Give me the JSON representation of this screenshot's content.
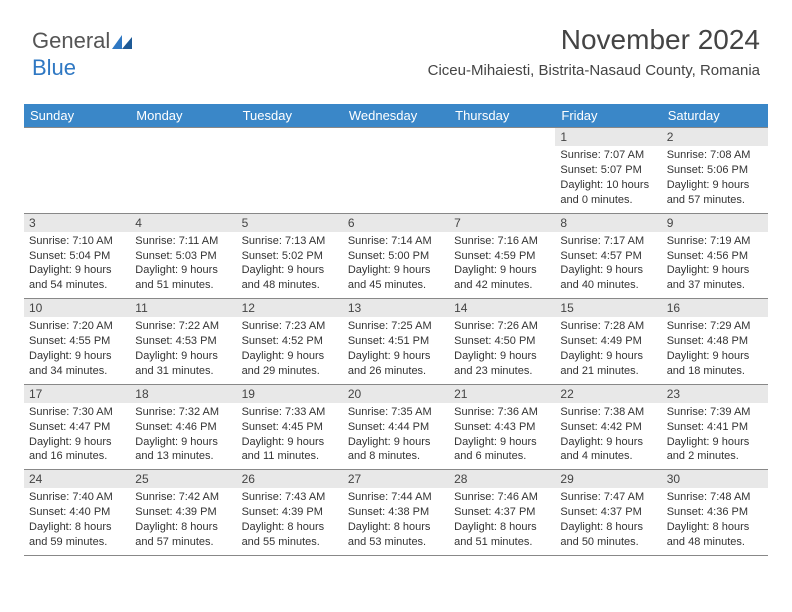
{
  "logo": {
    "text_gray": "General",
    "text_blue": "Blue"
  },
  "title": "November 2024",
  "location": "Ciceu-Mihaiesti, Bistrita-Nasaud County, Romania",
  "colors": {
    "header_bg": "#3a87c8",
    "header_text": "#ffffff",
    "daynum_bg": "#e8e8e8",
    "border": "#888888",
    "logo_gray": "#555555",
    "logo_blue": "#2f78c3",
    "body_text": "#333333",
    "bg": "#ffffff"
  },
  "typography": {
    "title_fontsize": 28,
    "location_fontsize": 15,
    "dayheader_fontsize": 13,
    "daynum_fontsize": 12,
    "cell_fontsize": 11
  },
  "day_headers": [
    "Sunday",
    "Monday",
    "Tuesday",
    "Wednesday",
    "Thursday",
    "Friday",
    "Saturday"
  ],
  "weeks": [
    [
      null,
      null,
      null,
      null,
      null,
      {
        "n": "1",
        "sunrise": "Sunrise: 7:07 AM",
        "sunset": "Sunset: 5:07 PM",
        "d1": "Daylight: 10 hours",
        "d2": "and 0 minutes."
      },
      {
        "n": "2",
        "sunrise": "Sunrise: 7:08 AM",
        "sunset": "Sunset: 5:06 PM",
        "d1": "Daylight: 9 hours",
        "d2": "and 57 minutes."
      }
    ],
    [
      {
        "n": "3",
        "sunrise": "Sunrise: 7:10 AM",
        "sunset": "Sunset: 5:04 PM",
        "d1": "Daylight: 9 hours",
        "d2": "and 54 minutes."
      },
      {
        "n": "4",
        "sunrise": "Sunrise: 7:11 AM",
        "sunset": "Sunset: 5:03 PM",
        "d1": "Daylight: 9 hours",
        "d2": "and 51 minutes."
      },
      {
        "n": "5",
        "sunrise": "Sunrise: 7:13 AM",
        "sunset": "Sunset: 5:02 PM",
        "d1": "Daylight: 9 hours",
        "d2": "and 48 minutes."
      },
      {
        "n": "6",
        "sunrise": "Sunrise: 7:14 AM",
        "sunset": "Sunset: 5:00 PM",
        "d1": "Daylight: 9 hours",
        "d2": "and 45 minutes."
      },
      {
        "n": "7",
        "sunrise": "Sunrise: 7:16 AM",
        "sunset": "Sunset: 4:59 PM",
        "d1": "Daylight: 9 hours",
        "d2": "and 42 minutes."
      },
      {
        "n": "8",
        "sunrise": "Sunrise: 7:17 AM",
        "sunset": "Sunset: 4:57 PM",
        "d1": "Daylight: 9 hours",
        "d2": "and 40 minutes."
      },
      {
        "n": "9",
        "sunrise": "Sunrise: 7:19 AM",
        "sunset": "Sunset: 4:56 PM",
        "d1": "Daylight: 9 hours",
        "d2": "and 37 minutes."
      }
    ],
    [
      {
        "n": "10",
        "sunrise": "Sunrise: 7:20 AM",
        "sunset": "Sunset: 4:55 PM",
        "d1": "Daylight: 9 hours",
        "d2": "and 34 minutes."
      },
      {
        "n": "11",
        "sunrise": "Sunrise: 7:22 AM",
        "sunset": "Sunset: 4:53 PM",
        "d1": "Daylight: 9 hours",
        "d2": "and 31 minutes."
      },
      {
        "n": "12",
        "sunrise": "Sunrise: 7:23 AM",
        "sunset": "Sunset: 4:52 PM",
        "d1": "Daylight: 9 hours",
        "d2": "and 29 minutes."
      },
      {
        "n": "13",
        "sunrise": "Sunrise: 7:25 AM",
        "sunset": "Sunset: 4:51 PM",
        "d1": "Daylight: 9 hours",
        "d2": "and 26 minutes."
      },
      {
        "n": "14",
        "sunrise": "Sunrise: 7:26 AM",
        "sunset": "Sunset: 4:50 PM",
        "d1": "Daylight: 9 hours",
        "d2": "and 23 minutes."
      },
      {
        "n": "15",
        "sunrise": "Sunrise: 7:28 AM",
        "sunset": "Sunset: 4:49 PM",
        "d1": "Daylight: 9 hours",
        "d2": "and 21 minutes."
      },
      {
        "n": "16",
        "sunrise": "Sunrise: 7:29 AM",
        "sunset": "Sunset: 4:48 PM",
        "d1": "Daylight: 9 hours",
        "d2": "and 18 minutes."
      }
    ],
    [
      {
        "n": "17",
        "sunrise": "Sunrise: 7:30 AM",
        "sunset": "Sunset: 4:47 PM",
        "d1": "Daylight: 9 hours",
        "d2": "and 16 minutes."
      },
      {
        "n": "18",
        "sunrise": "Sunrise: 7:32 AM",
        "sunset": "Sunset: 4:46 PM",
        "d1": "Daylight: 9 hours",
        "d2": "and 13 minutes."
      },
      {
        "n": "19",
        "sunrise": "Sunrise: 7:33 AM",
        "sunset": "Sunset: 4:45 PM",
        "d1": "Daylight: 9 hours",
        "d2": "and 11 minutes."
      },
      {
        "n": "20",
        "sunrise": "Sunrise: 7:35 AM",
        "sunset": "Sunset: 4:44 PM",
        "d1": "Daylight: 9 hours",
        "d2": "and 8 minutes."
      },
      {
        "n": "21",
        "sunrise": "Sunrise: 7:36 AM",
        "sunset": "Sunset: 4:43 PM",
        "d1": "Daylight: 9 hours",
        "d2": "and 6 minutes."
      },
      {
        "n": "22",
        "sunrise": "Sunrise: 7:38 AM",
        "sunset": "Sunset: 4:42 PM",
        "d1": "Daylight: 9 hours",
        "d2": "and 4 minutes."
      },
      {
        "n": "23",
        "sunrise": "Sunrise: 7:39 AM",
        "sunset": "Sunset: 4:41 PM",
        "d1": "Daylight: 9 hours",
        "d2": "and 2 minutes."
      }
    ],
    [
      {
        "n": "24",
        "sunrise": "Sunrise: 7:40 AM",
        "sunset": "Sunset: 4:40 PM",
        "d1": "Daylight: 8 hours",
        "d2": "and 59 minutes."
      },
      {
        "n": "25",
        "sunrise": "Sunrise: 7:42 AM",
        "sunset": "Sunset: 4:39 PM",
        "d1": "Daylight: 8 hours",
        "d2": "and 57 minutes."
      },
      {
        "n": "26",
        "sunrise": "Sunrise: 7:43 AM",
        "sunset": "Sunset: 4:39 PM",
        "d1": "Daylight: 8 hours",
        "d2": "and 55 minutes."
      },
      {
        "n": "27",
        "sunrise": "Sunrise: 7:44 AM",
        "sunset": "Sunset: 4:38 PM",
        "d1": "Daylight: 8 hours",
        "d2": "and 53 minutes."
      },
      {
        "n": "28",
        "sunrise": "Sunrise: 7:46 AM",
        "sunset": "Sunset: 4:37 PM",
        "d1": "Daylight: 8 hours",
        "d2": "and 51 minutes."
      },
      {
        "n": "29",
        "sunrise": "Sunrise: 7:47 AM",
        "sunset": "Sunset: 4:37 PM",
        "d1": "Daylight: 8 hours",
        "d2": "and 50 minutes."
      },
      {
        "n": "30",
        "sunrise": "Sunrise: 7:48 AM",
        "sunset": "Sunset: 4:36 PM",
        "d1": "Daylight: 8 hours",
        "d2": "and 48 minutes."
      }
    ]
  ]
}
